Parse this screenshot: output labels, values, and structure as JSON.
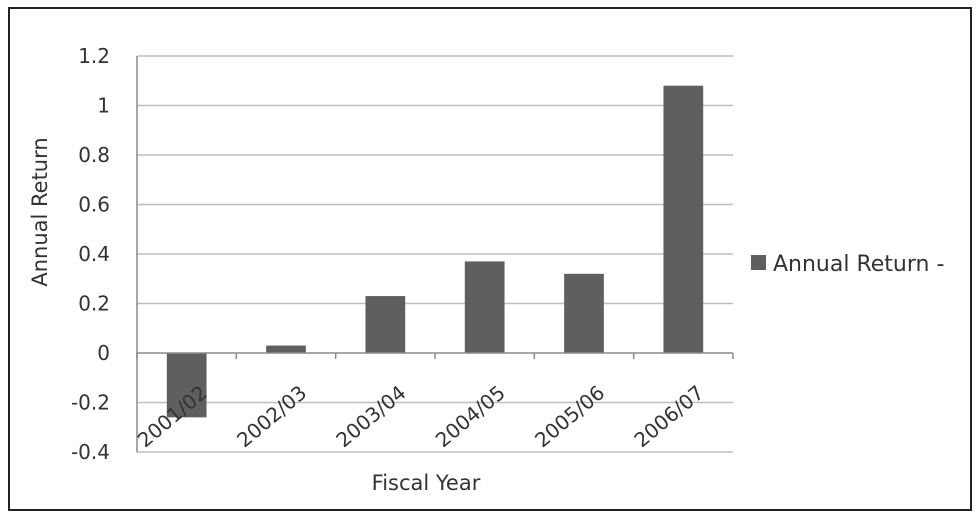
{
  "chart_data": {
    "type": "bar",
    "title": "",
    "xlabel": "Fiscal Year",
    "ylabel": "Annual Return",
    "categories": [
      "2001/02",
      "2002/03",
      "2003/04",
      "2004/05",
      "2005/06",
      "2006/07"
    ],
    "series": [
      {
        "name": "Annual Return -",
        "values": [
          -0.26,
          0.03,
          0.23,
          0.37,
          0.32,
          1.08
        ]
      }
    ],
    "ylim": [
      -0.4,
      1.2
    ],
    "yticks": [
      "1.2",
      "1",
      "0.8",
      "0.6",
      "0.4",
      "0.2",
      "0",
      "-0.2",
      "-0.4"
    ],
    "ytick_values": [
      1.2,
      1.0,
      0.8,
      0.6,
      0.4,
      0.2,
      0.0,
      -0.2,
      -0.4
    ],
    "grid": true,
    "legend_position": "right",
    "colors": {
      "bar": "#5f5f5f",
      "grid": "#bdbdbd",
      "text": "#333333"
    }
  }
}
